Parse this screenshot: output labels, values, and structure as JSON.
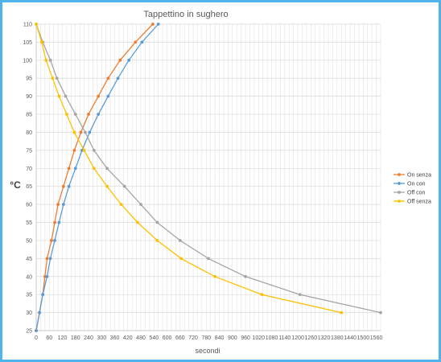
{
  "chart_data": {
    "type": "line",
    "title": "Tappettino in sughero",
    "xlabel": "secondi",
    "ylabel": "°C",
    "xlim": [
      0,
      1580
    ],
    "ylim": [
      25,
      110
    ],
    "x_ticks": [
      0,
      60,
      120,
      180,
      240,
      300,
      360,
      420,
      480,
      540,
      600,
      660,
      720,
      780,
      840,
      900,
      960,
      1020,
      1080,
      1140,
      1200,
      1260,
      1320,
      1380,
      1440,
      1500,
      1560
    ],
    "y_ticks": [
      25,
      30,
      35,
      40,
      45,
      50,
      55,
      60,
      65,
      70,
      75,
      80,
      85,
      90,
      95,
      100,
      105,
      110
    ],
    "grid": true,
    "legend_position": "right",
    "series": [
      {
        "name": "On senza",
        "color": "#ed7d31",
        "points": [
          [
            0,
            25
          ],
          [
            15,
            30
          ],
          [
            30,
            35
          ],
          [
            40,
            40
          ],
          [
            50,
            45
          ],
          [
            70,
            50
          ],
          [
            85,
            55
          ],
          [
            100,
            60
          ],
          [
            125,
            65
          ],
          [
            150,
            70
          ],
          [
            175,
            75
          ],
          [
            205,
            80
          ],
          [
            240,
            85
          ],
          [
            285,
            90
          ],
          [
            330,
            95
          ],
          [
            385,
            100
          ],
          [
            455,
            105
          ],
          [
            535,
            110
          ]
        ]
      },
      {
        "name": "On con",
        "color": "#5b9bd5",
        "points": [
          [
            0,
            25
          ],
          [
            15,
            30
          ],
          [
            30,
            35
          ],
          [
            50,
            40
          ],
          [
            65,
            45
          ],
          [
            85,
            50
          ],
          [
            105,
            55
          ],
          [
            125,
            60
          ],
          [
            150,
            65
          ],
          [
            180,
            70
          ],
          [
            210,
            75
          ],
          [
            245,
            80
          ],
          [
            285,
            85
          ],
          [
            330,
            90
          ],
          [
            375,
            95
          ],
          [
            425,
            100
          ],
          [
            485,
            105
          ],
          [
            560,
            110
          ]
        ]
      },
      {
        "name": "Off con",
        "color": "#a5a5a5",
        "points": [
          [
            0,
            110
          ],
          [
            30,
            105
          ],
          [
            65,
            100
          ],
          [
            95,
            95
          ],
          [
            135,
            90
          ],
          [
            180,
            85
          ],
          [
            225,
            80
          ],
          [
            265,
            75
          ],
          [
            325,
            70
          ],
          [
            405,
            65
          ],
          [
            480,
            60
          ],
          [
            555,
            55
          ],
          [
            660,
            50
          ],
          [
            790,
            45
          ],
          [
            960,
            40
          ],
          [
            1210,
            35
          ],
          [
            1580,
            30
          ]
        ]
      },
      {
        "name": "Off senza",
        "color": "#ffc000",
        "points": [
          [
            0,
            110
          ],
          [
            25,
            105
          ],
          [
            45,
            100
          ],
          [
            75,
            95
          ],
          [
            105,
            90
          ],
          [
            140,
            85
          ],
          [
            175,
            80
          ],
          [
            220,
            75
          ],
          [
            265,
            70
          ],
          [
            325,
            65
          ],
          [
            390,
            60
          ],
          [
            465,
            55
          ],
          [
            555,
            50
          ],
          [
            665,
            45
          ],
          [
            820,
            40
          ],
          [
            1035,
            35
          ],
          [
            1400,
            30
          ]
        ]
      }
    ]
  }
}
